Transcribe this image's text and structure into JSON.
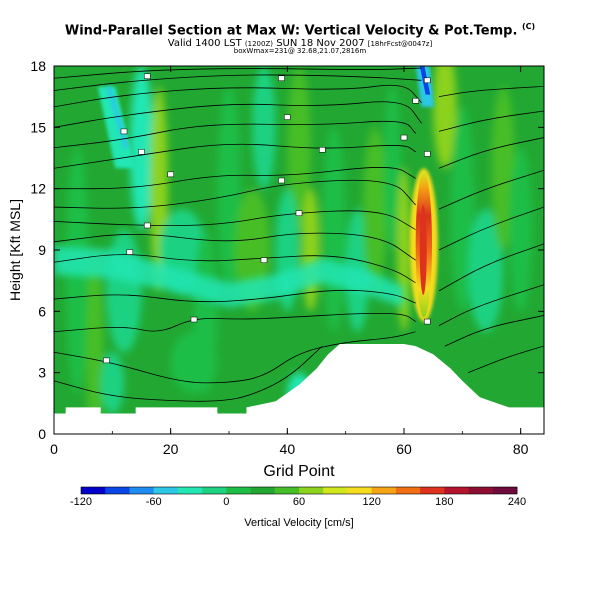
{
  "title": "Wind-Parallel Section at Max W: Vertical Velocity & Pot.Temp.",
  "title_mark": "(C)",
  "subtitle_main": "Valid 1400 LST",
  "subtitle_small1": "(1200Z)",
  "subtitle_date": "SUN 18 Nov 2007",
  "subtitle_small2": "[18hrFcst@0047z]",
  "subtitle_line2": "boxWmax=231@ 32.68,21.07,2816m",
  "colors": {
    "terrain": "#ffffff",
    "background_field": "#22a832",
    "contour": "#000000",
    "colorbar": [
      "#0000c8",
      "#0a46e6",
      "#1e8cf0",
      "#2cc8e6",
      "#22e6b4",
      "#1ed282",
      "#1ebe46",
      "#22a832",
      "#46be28",
      "#8cd21e",
      "#d2e61e",
      "#f5dc1e",
      "#f5a514",
      "#f06e14",
      "#dc321e",
      "#b4142d",
      "#8c0f32",
      "#6e0a3c"
    ]
  },
  "chart_data": {
    "type": "heatmap",
    "xlabel": "Grid Point",
    "ylabel": "Height [Kft MSL]",
    "xlim": [
      0,
      84
    ],
    "ylim": [
      0,
      18
    ],
    "xticks": [
      "0",
      "20",
      "40",
      "60",
      "80"
    ],
    "yticks": [
      "0",
      "3",
      "6",
      "9",
      "12",
      "15",
      "18"
    ],
    "grid": false,
    "colorbar": {
      "label": "Vertical Velocity [cm/s]",
      "ticks": [
        "-120",
        "-60",
        "0",
        "60",
        "120",
        "180",
        "240"
      ],
      "range": [
        -120,
        240
      ]
    },
    "max_updraft": {
      "x": 63,
      "y_bottom": 5.5,
      "y_top": 13,
      "value": 231
    },
    "downdraft_streaks": [
      {
        "x_bottom": 64,
        "x_top": 63,
        "y_bottom": 16,
        "y_top": 18,
        "value": -120
      },
      {
        "x_bottom": 12,
        "x_top": 9,
        "y_bottom": 13,
        "y_top": 17,
        "value": -40
      }
    ],
    "terrain_profile": [
      [
        0,
        0
      ],
      [
        0,
        1.0
      ],
      [
        2,
        1.0
      ],
      [
        2,
        1.3
      ],
      [
        8,
        1.3
      ],
      [
        8,
        1.0
      ],
      [
        14,
        1.0
      ],
      [
        14,
        1.3
      ],
      [
        28,
        1.3
      ],
      [
        28,
        1.0
      ],
      [
        33,
        1.0
      ],
      [
        33,
        1.3
      ],
      [
        38,
        1.6
      ],
      [
        42,
        2.4
      ],
      [
        45,
        3.2
      ],
      [
        47,
        3.9
      ],
      [
        49,
        4.4
      ],
      [
        60,
        4.4
      ],
      [
        62,
        4.3
      ],
      [
        65,
        3.9
      ],
      [
        68,
        3.2
      ],
      [
        70,
        2.6
      ],
      [
        73,
        1.8
      ],
      [
        76,
        1.5
      ],
      [
        78,
        1.3
      ],
      [
        84,
        1.3
      ],
      [
        84,
        0
      ]
    ],
    "theta_contours": [
      [
        [
          0,
          2.6
        ],
        [
          10,
          1.8
        ],
        [
          22,
          1.6
        ],
        [
          28,
          1.6
        ],
        [
          33,
          1.8
        ],
        [
          40,
          2.7
        ],
        [
          46,
          4.3
        ]
      ],
      [
        [
          0,
          4.0
        ],
        [
          10,
          3.5
        ],
        [
          22,
          2.5
        ],
        [
          30,
          2.5
        ],
        [
          36,
          2.8
        ],
        [
          42,
          4.0
        ],
        [
          50,
          4.5
        ],
        [
          58,
          4.7
        ],
        [
          62,
          5.0
        ]
      ],
      [
        [
          0,
          5.0
        ],
        [
          12,
          5.3
        ],
        [
          18,
          4.9
        ],
        [
          24,
          5.7
        ],
        [
          32,
          5.6
        ],
        [
          40,
          5.7
        ],
        [
          52,
          5.9
        ],
        [
          60,
          5.9
        ],
        [
          62,
          5.5
        ]
      ],
      [
        [
          0,
          6.6
        ],
        [
          12,
          6.9
        ],
        [
          24,
          6.4
        ],
        [
          36,
          6.6
        ],
        [
          48,
          7.1
        ],
        [
          58,
          6.9
        ],
        [
          62,
          6.4
        ]
      ],
      [
        [
          0,
          8.4
        ],
        [
          12,
          8.9
        ],
        [
          24,
          8.4
        ],
        [
          36,
          8.6
        ],
        [
          48,
          8.8
        ],
        [
          58,
          8.1
        ],
        [
          62,
          7.4
        ]
      ],
      [
        [
          0,
          9.4
        ],
        [
          14,
          9.9
        ],
        [
          30,
          9.3
        ],
        [
          42,
          9.9
        ],
        [
          56,
          9.7
        ],
        [
          62,
          8.5
        ]
      ],
      [
        [
          0,
          10.4
        ],
        [
          14,
          10.2
        ],
        [
          28,
          10.2
        ],
        [
          40,
          10.8
        ],
        [
          56,
          11.0
        ],
        [
          62,
          10.0
        ]
      ],
      [
        [
          0,
          11.1
        ],
        [
          14,
          11.0
        ],
        [
          28,
          11.5
        ],
        [
          40,
          12.3
        ],
        [
          58,
          12.5
        ],
        [
          62,
          11.2
        ]
      ],
      [
        [
          0,
          12.0
        ],
        [
          14,
          12.0
        ],
        [
          28,
          12.7
        ],
        [
          40,
          12.6
        ],
        [
          58,
          13.2
        ],
        [
          62,
          12.5
        ]
      ],
      [
        [
          0,
          13.0
        ],
        [
          14,
          13.6
        ],
        [
          30,
          14.3
        ],
        [
          46,
          13.9
        ],
        [
          60,
          14.2
        ],
        [
          62,
          13.8
        ]
      ],
      [
        [
          0,
          14.0
        ],
        [
          12,
          14.4
        ],
        [
          26,
          15.2
        ],
        [
          46,
          15.1
        ],
        [
          60,
          15.4
        ],
        [
          62,
          14.7
        ]
      ],
      [
        [
          0,
          15.0
        ],
        [
          12,
          15.6
        ],
        [
          30,
          16.2
        ],
        [
          46,
          16.0
        ],
        [
          60,
          16.4
        ],
        [
          63,
          15.2
        ]
      ],
      [
        [
          0,
          16.0
        ],
        [
          12,
          16.6
        ],
        [
          30,
          17.0
        ],
        [
          50,
          16.8
        ],
        [
          60,
          17.2
        ],
        [
          63,
          16.2
        ]
      ],
      [
        [
          0,
          16.8
        ],
        [
          14,
          17.3
        ],
        [
          32,
          17.6
        ],
        [
          52,
          17.5
        ],
        [
          63,
          17.3
        ]
      ],
      [
        [
          0,
          17.4
        ],
        [
          16,
          17.8
        ],
        [
          34,
          17.9
        ],
        [
          54,
          17.8
        ],
        [
          63,
          17.9
        ]
      ],
      [
        [
          66,
          16.5
        ],
        [
          72,
          16.8
        ],
        [
          84,
          17.0
        ]
      ],
      [
        [
          66,
          14.8
        ],
        [
          74,
          15.4
        ],
        [
          84,
          15.8
        ]
      ],
      [
        [
          66,
          13.0
        ],
        [
          74,
          13.9
        ],
        [
          84,
          14.5
        ]
      ],
      [
        [
          66,
          11.0
        ],
        [
          74,
          12.0
        ],
        [
          84,
          12.9
        ]
      ],
      [
        [
          66,
          9.0
        ],
        [
          74,
          10.1
        ],
        [
          84,
          11.1
        ]
      ],
      [
        [
          66,
          7.0
        ],
        [
          74,
          8.3
        ],
        [
          84,
          9.3
        ]
      ],
      [
        [
          66,
          5.3
        ],
        [
          72,
          6.2
        ],
        [
          84,
          7.3
        ]
      ],
      [
        [
          67,
          4.3
        ],
        [
          74,
          5.2
        ],
        [
          84,
          5.8
        ]
      ],
      [
        [
          71,
          3.0
        ],
        [
          78,
          3.8
        ],
        [
          84,
          4.3
        ]
      ]
    ]
  }
}
